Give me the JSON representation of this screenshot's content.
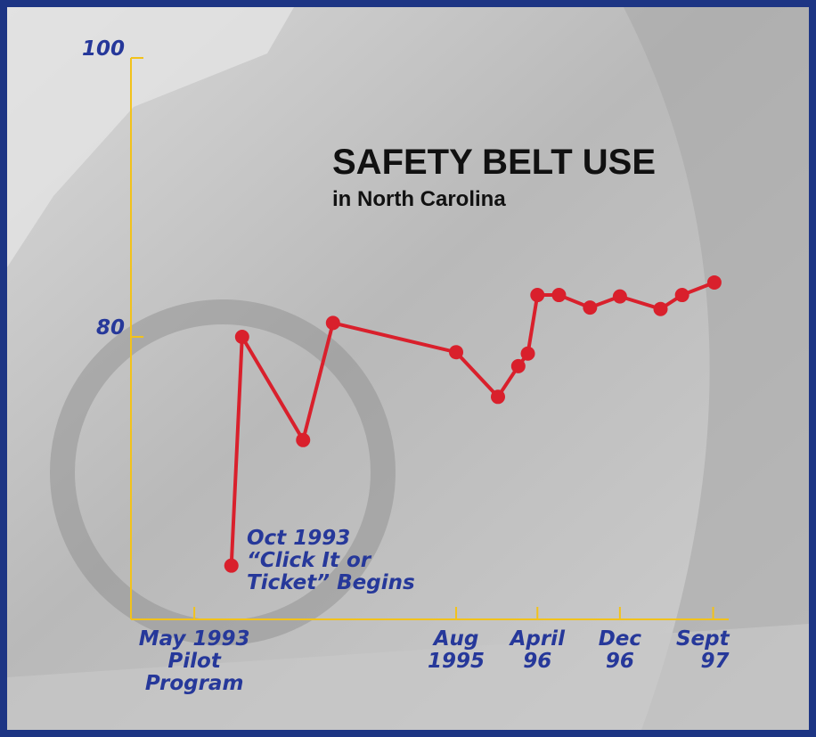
{
  "chart_data": {
    "type": "line",
    "title": "SAFETY BELT USE",
    "subtitle": "in North Carolina",
    "annotation": "Oct 1993\n“Click It or\nTicket” Begins",
    "x": [
      1993.64,
      1993.73,
      1994.24,
      1994.49,
      1995.52,
      1995.87,
      1996.04,
      1996.12,
      1996.2,
      1996.38,
      1996.64,
      1996.89,
      1997.23,
      1997.41,
      1997.68
    ],
    "series": [
      {
        "color": "#d9202c",
        "values": [
          63.6,
          80,
          72.6,
          81,
          78.9,
          75.7,
          77.9,
          78.8,
          83,
          83,
          82.1,
          82.9,
          82,
          83,
          83.9
        ]
      }
    ],
    "xlim": [
      1992.8,
      1997.8
    ],
    "xticks": [
      {
        "value": 1993.33,
        "label": "May 1993\nPilot\nProgram"
      },
      {
        "value": 1995.52,
        "label": "Aug\n1995"
      },
      {
        "value": 1996.2,
        "label": "April\n96"
      },
      {
        "value": 1996.89,
        "label": "Dec\n96"
      },
      {
        "value": 1997.67,
        "label": "Sept\n97"
      }
    ],
    "ylim": [
      60,
      100
    ],
    "yticks": [
      80,
      100
    ],
    "axis_color": "#f2c21b"
  }
}
